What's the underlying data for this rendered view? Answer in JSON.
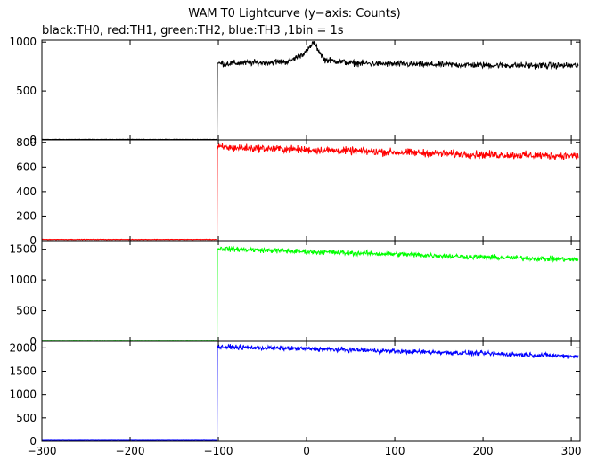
{
  "chart_data": {
    "type": "line",
    "title": "WAM T0 Lightcurve (y−axis: Counts)",
    "subtitle": "black:TH0, red:TH1, green:TH2, blue:TH3 ,1bin = 1s",
    "xlim": [
      -300,
      310
    ],
    "x_ticks": [
      -300,
      -200,
      -100,
      0,
      100,
      200,
      300
    ],
    "grid": false,
    "panels": [
      {
        "name": "TH0",
        "color": "#000000",
        "ylim": [
          0,
          1020
        ],
        "y_ticks": [
          0,
          500,
          1000
        ],
        "pre_level": 5,
        "onset_x": -101,
        "points": [
          [
            -100,
            780
          ],
          [
            -50,
            790
          ],
          [
            -20,
            800
          ],
          [
            0,
            900
          ],
          [
            8,
            1000
          ],
          [
            20,
            820
          ],
          [
            50,
            785
          ],
          [
            100,
            775
          ],
          [
            150,
            770
          ],
          [
            200,
            765
          ],
          [
            250,
            762
          ],
          [
            308,
            760
          ]
        ],
        "noise": 22
      },
      {
        "name": "TH1",
        "color": "#ff0000",
        "ylim": [
          0,
          820
        ],
        "y_ticks": [
          0,
          200,
          400,
          600,
          800
        ],
        "pre_level": 10,
        "onset_x": -101,
        "points": [
          [
            -100,
            760
          ],
          [
            0,
            740
          ],
          [
            100,
            720
          ],
          [
            200,
            700
          ],
          [
            308,
            690
          ]
        ],
        "noise": 22
      },
      {
        "name": "TH2",
        "color": "#00ff00",
        "ylim": [
          0,
          1640
        ],
        "y_ticks": [
          0,
          500,
          1000,
          1500
        ],
        "pre_level": 18,
        "onset_x": -101,
        "points": [
          [
            -100,
            1510
          ],
          [
            0,
            1460
          ],
          [
            100,
            1420
          ],
          [
            200,
            1370
          ],
          [
            308,
            1330
          ]
        ],
        "noise": 30
      },
      {
        "name": "TH3",
        "color": "#0000ff",
        "ylim": [
          0,
          2140
        ],
        "y_ticks": [
          0,
          500,
          1000,
          1500,
          2000
        ],
        "pre_level": 20,
        "onset_x": -101,
        "points": [
          [
            -100,
            2020
          ],
          [
            0,
            1980
          ],
          [
            100,
            1930
          ],
          [
            200,
            1880
          ],
          [
            308,
            1820
          ]
        ],
        "noise": 35
      }
    ]
  }
}
